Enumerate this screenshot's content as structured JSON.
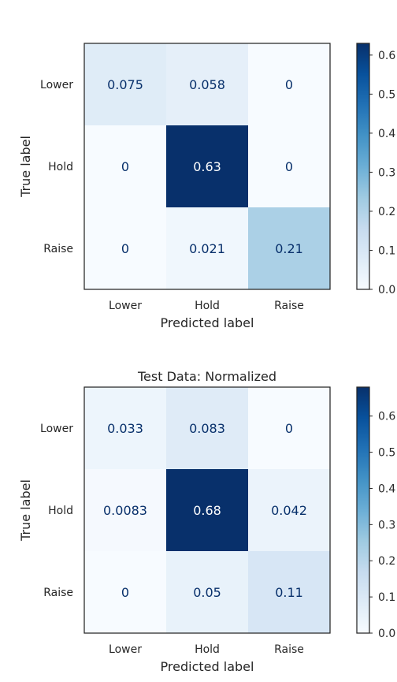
{
  "chart_data": [
    {
      "type": "heatmap",
      "title": "",
      "xlabel": "Predicted label",
      "ylabel": "True label",
      "x_categories": [
        "Lower",
        "Hold",
        "Raise"
      ],
      "y_categories": [
        "Lower",
        "Hold",
        "Raise"
      ],
      "values": [
        [
          0.075,
          0.058,
          0
        ],
        [
          0,
          0.63,
          0
        ],
        [
          0,
          0.021,
          0.21
        ]
      ],
      "value_labels": [
        [
          "0.075",
          "0.058",
          "0"
        ],
        [
          "0",
          "0.63",
          "0"
        ],
        [
          "0",
          "0.021",
          "0.21"
        ]
      ],
      "colorbar": {
        "range": [
          0,
          0.63
        ],
        "ticks": [
          0.0,
          0.1,
          0.2,
          0.3,
          0.4,
          0.5,
          0.6
        ],
        "tick_labels": [
          "0.0",
          "0.1",
          "0.2",
          "0.3",
          "0.4",
          "0.5",
          "0.6"
        ]
      },
      "colormap": "Blues"
    },
    {
      "type": "heatmap",
      "title": "Test Data: Normalized",
      "xlabel": "Predicted label",
      "ylabel": "True label",
      "x_categories": [
        "Lower",
        "Hold",
        "Raise"
      ],
      "y_categories": [
        "Lower",
        "Hold",
        "Raise"
      ],
      "values": [
        [
          0.033,
          0.083,
          0
        ],
        [
          0.0083,
          0.68,
          0.042
        ],
        [
          0,
          0.05,
          0.11
        ]
      ],
      "value_labels": [
        [
          "0.033",
          "0.083",
          "0"
        ],
        [
          "0.0083",
          "0.68",
          "0.042"
        ],
        [
          "0",
          "0.05",
          "0.11"
        ]
      ],
      "colorbar": {
        "range": [
          0,
          0.68
        ],
        "ticks": [
          0.0,
          0.1,
          0.2,
          0.3,
          0.4,
          0.5,
          0.6
        ],
        "tick_labels": [
          "0.0",
          "0.1",
          "0.2",
          "0.3",
          "0.4",
          "0.5",
          "0.6"
        ]
      },
      "colormap": "Blues"
    }
  ]
}
